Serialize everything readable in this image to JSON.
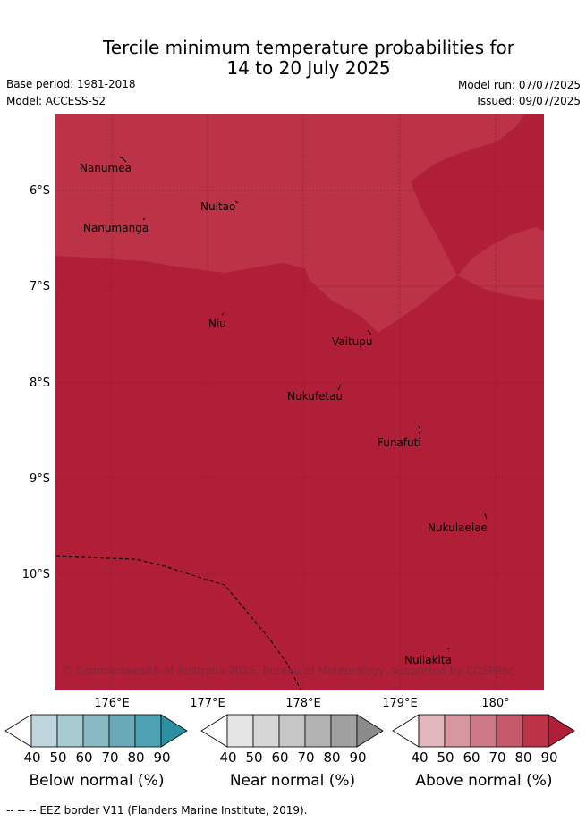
{
  "title_line1": "Tercile minimum temperature probabilities for",
  "title_line2": "14 to 20 July 2025",
  "meta": {
    "base_period": "Base period: 1981-2018",
    "model": "Model: ACCESS-S2",
    "model_run": "Model run: 07/07/2025",
    "issued": "Issued: 09/07/2025"
  },
  "axes": {
    "lat_labels": [
      "6°S",
      "7°S",
      "8°S",
      "9°S",
      "10°S"
    ],
    "lon_labels": [
      "176°E",
      "177°E",
      "178°E",
      "179°E",
      "180°"
    ]
  },
  "places": [
    "Nanumea",
    "Nuitao",
    "Nanumanga",
    "Niu",
    "Vaitupu",
    "Nukufetau",
    "Funafuti",
    "Nukulaelae",
    "Nuilakita"
  ],
  "credit": "© Commonwealth of Australia 2025, Bureau of Meteorology, supported by COSPPac",
  "colorbars": [
    {
      "title": "Below normal (%)",
      "ticks": [
        "40",
        "50",
        "60",
        "70",
        "80",
        "90"
      ],
      "colors": [
        "#ffffff",
        "#bfd7dc",
        "#a6cbd1",
        "#88bac4",
        "#6aa9b7",
        "#4da3b3",
        "#2c90a4"
      ]
    },
    {
      "title": "Near normal (%)",
      "ticks": [
        "40",
        "50",
        "60",
        "70",
        "80",
        "90"
      ],
      "colors": [
        "#ffffff",
        "#e4e4e4",
        "#d6d6d6",
        "#c6c6c6",
        "#b3b3b3",
        "#a0a0a0",
        "#8b8b8b"
      ]
    },
    {
      "title": "Above normal (%)",
      "ticks": [
        "40",
        "50",
        "60",
        "70",
        "80",
        "90"
      ],
      "colors": [
        "#ffffff",
        "#e3b7be",
        "#d797a0",
        "#cc7a85",
        "#c55a6a",
        "#bc3348",
        "#b01e38"
      ]
    }
  ],
  "footnote": "--  --  -- EEZ border V11 (Flanders Marine Institute, 2019).",
  "colors": {
    "above_80_90": "#bc3348",
    "above_90": "#b01e38"
  }
}
